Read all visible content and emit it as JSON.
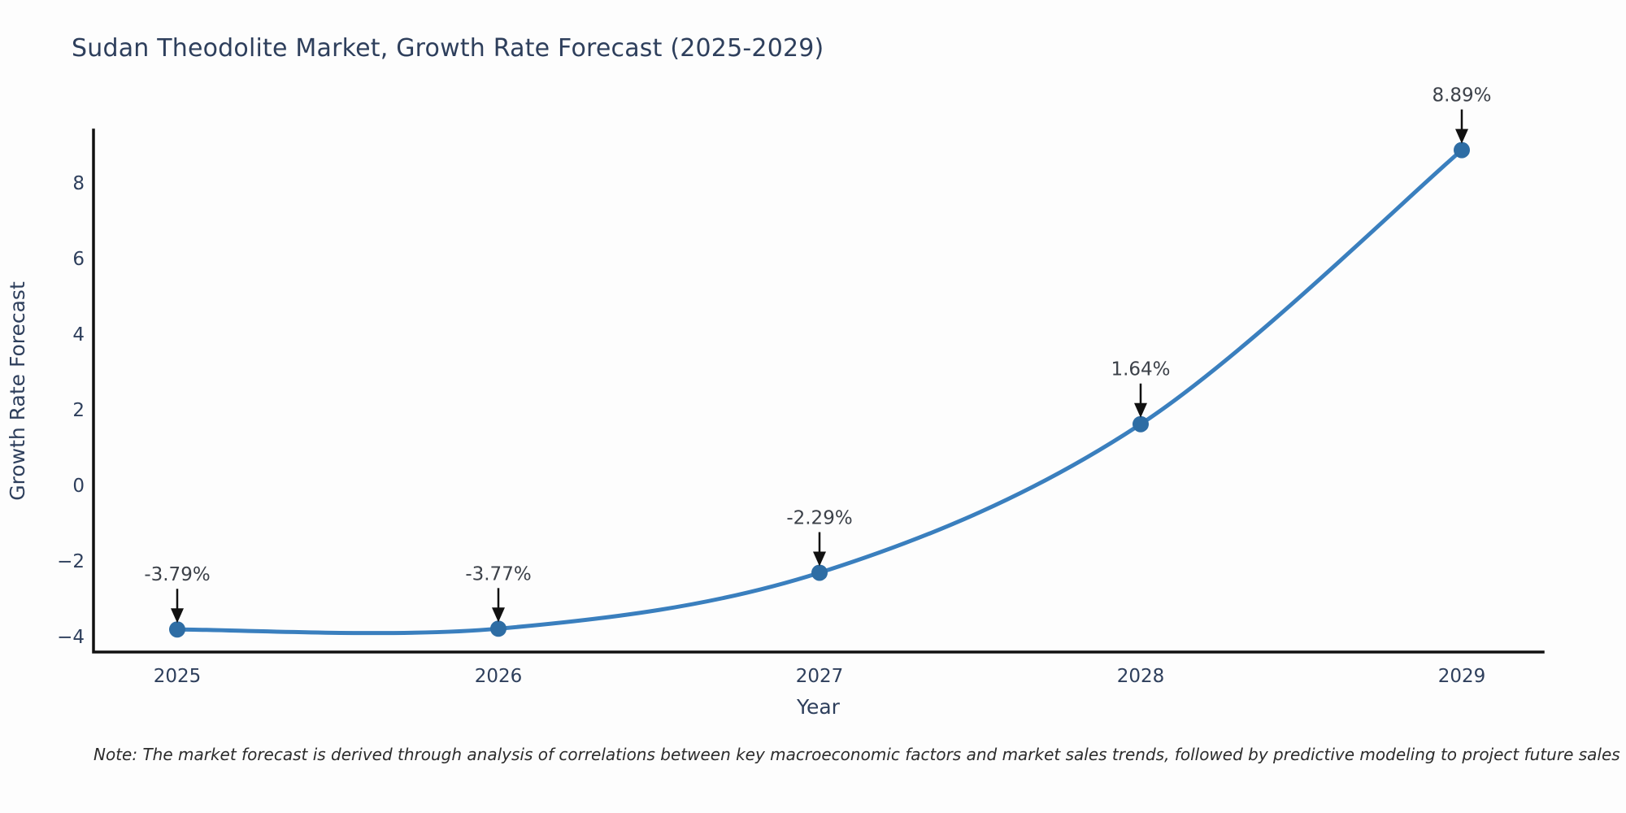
{
  "chart_data": {
    "type": "line",
    "title": "Sudan Theodolite Market, Growth Rate Forecast (2025-2029)",
    "xlabel": "Year",
    "ylabel": "Growth Rate Forecast",
    "categories": [
      "2025",
      "2026",
      "2027",
      "2028",
      "2029"
    ],
    "values": [
      -3.79,
      -3.77,
      -2.29,
      1.64,
      8.89
    ],
    "point_labels": [
      "-3.79%",
      "-3.77%",
      "-2.29%",
      "1.64%",
      "8.89%"
    ],
    "yticks": [
      -4,
      -2,
      0,
      2,
      4,
      6,
      8
    ],
    "ylim": [
      -4.39,
      9.42
    ],
    "grid": false,
    "legend": "none",
    "line_color": "#3a7fbe",
    "marker_color": "#2e6da4",
    "axis_color": "#111111",
    "text_color": "#2e3f5c",
    "annotation_text_color": "#3c4149",
    "note": "Note: The market forecast is derived through analysis of correlations between key macroeconomic factors and market sales trends, followed by predictive modeling to project future sales"
  }
}
